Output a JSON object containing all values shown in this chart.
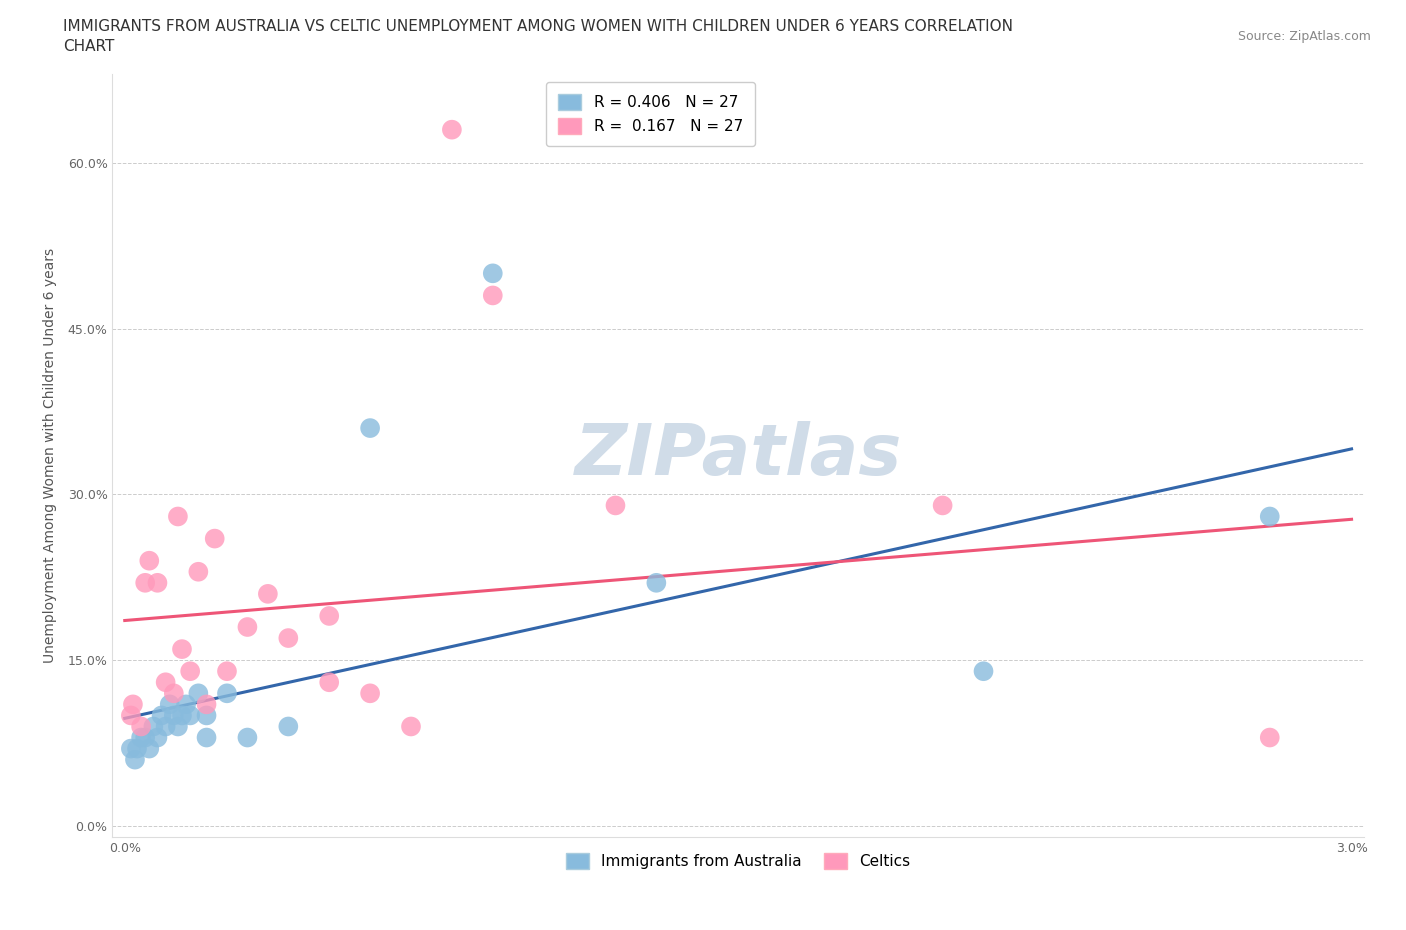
{
  "title_line1": "IMMIGRANTS FROM AUSTRALIA VS CELTIC UNEMPLOYMENT AMONG WOMEN WITH CHILDREN UNDER 6 YEARS CORRELATION",
  "title_line2": "CHART",
  "source": "Source: ZipAtlas.com",
  "ylabel": "Unemployment Among Women with Children Under 6 years",
  "xmin": 0.0,
  "xmax": 0.03,
  "ymin": -0.01,
  "ymax": 0.68,
  "yticks": [
    0.0,
    0.15,
    0.3,
    0.45,
    0.6
  ],
  "ytick_labels": [
    "0.0%",
    "15.0%",
    "30.0%",
    "45.0%",
    "60.0%"
  ],
  "xticks": [
    0.0,
    0.005,
    0.01,
    0.015,
    0.02,
    0.025,
    0.03
  ],
  "xtick_labels": [
    "0.0%",
    "",
    "",
    "",
    "",
    "",
    "3.0%"
  ],
  "blue_R": 0.406,
  "blue_N": 27,
  "pink_R": 0.167,
  "pink_N": 27,
  "blue_color": "#88BBDD",
  "pink_color": "#FF99BB",
  "blue_line_color": "#3366AA",
  "pink_line_color": "#EE5577",
  "watermark_color": "#D0DCE8",
  "background_color": "#FFFFFF",
  "blue_x": [
    0.00015,
    0.00025,
    0.0003,
    0.0004,
    0.0005,
    0.0006,
    0.0007,
    0.0008,
    0.0009,
    0.001,
    0.0011,
    0.0012,
    0.0013,
    0.0014,
    0.0015,
    0.0016,
    0.0018,
    0.002,
    0.002,
    0.0025,
    0.003,
    0.004,
    0.006,
    0.009,
    0.013,
    0.021,
    0.028
  ],
  "blue_y": [
    0.07,
    0.06,
    0.07,
    0.08,
    0.08,
    0.07,
    0.09,
    0.08,
    0.1,
    0.09,
    0.11,
    0.1,
    0.09,
    0.1,
    0.11,
    0.1,
    0.12,
    0.1,
    0.08,
    0.12,
    0.08,
    0.09,
    0.36,
    0.5,
    0.22,
    0.14,
    0.28
  ],
  "pink_x": [
    0.00015,
    0.0002,
    0.0004,
    0.0005,
    0.0006,
    0.0008,
    0.001,
    0.0012,
    0.0013,
    0.0014,
    0.0016,
    0.0018,
    0.002,
    0.0022,
    0.0025,
    0.003,
    0.0035,
    0.004,
    0.005,
    0.005,
    0.006,
    0.007,
    0.008,
    0.009,
    0.012,
    0.02,
    0.028
  ],
  "pink_y": [
    0.1,
    0.11,
    0.09,
    0.22,
    0.24,
    0.22,
    0.13,
    0.12,
    0.28,
    0.16,
    0.14,
    0.23,
    0.11,
    0.26,
    0.14,
    0.18,
    0.21,
    0.17,
    0.13,
    0.19,
    0.12,
    0.09,
    0.63,
    0.48,
    0.29,
    0.29,
    0.08
  ],
  "title_fontsize": 11,
  "axis_label_fontsize": 10,
  "tick_fontsize": 9,
  "legend_fontsize": 11,
  "source_fontsize": 9
}
